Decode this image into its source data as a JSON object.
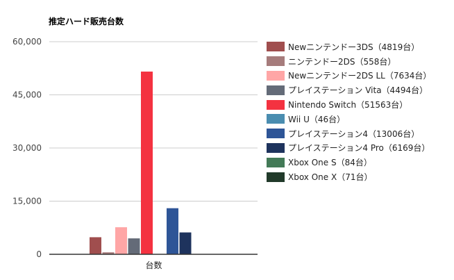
{
  "chart_data": {
    "type": "bar",
    "title": "推定ハード販売台数",
    "categories": [
      "台数"
    ],
    "xlabel": "",
    "ylabel": "",
    "ylim": [
      0,
      60000
    ],
    "yticks": [
      "0",
      "15,000",
      "30,000",
      "45,000",
      "60,000"
    ],
    "ytick_values": [
      0,
      15000,
      30000,
      45000,
      60000
    ],
    "grid": true,
    "legend_position": "right",
    "series": [
      {
        "name": "Newニンテンドー3DS（4819台）",
        "values": [
          4819
        ],
        "color": "#a04e4e"
      },
      {
        "name": "ニンテンドー2DS（558台）",
        "values": [
          558
        ],
        "color": "#a67c7c"
      },
      {
        "name": "Newニンテンドー2DS LL（7634台）",
        "values": [
          7634
        ],
        "color": "#ffa6a6"
      },
      {
        "name": "プレイステーション Vita（4494台）",
        "values": [
          4494
        ],
        "color": "#646b78"
      },
      {
        "name": "Nintendo Switch（51563台）",
        "values": [
          51563
        ],
        "color": "#f43240"
      },
      {
        "name": "Wii U（46台）",
        "values": [
          46
        ],
        "color": "#4a8db0"
      },
      {
        "name": "プレイステーション4（13006台）",
        "values": [
          13006
        ],
        "color": "#2e5597"
      },
      {
        "name": "プレイステーション4 Pro（6169台）",
        "values": [
          6169
        ],
        "color": "#1e335d"
      },
      {
        "name": "Xbox One S（84台）",
        "values": [
          84
        ],
        "color": "#437a57"
      },
      {
        "name": "Xbox One X（71台）",
        "values": [
          71
        ],
        "color": "#213a2a"
      }
    ]
  }
}
